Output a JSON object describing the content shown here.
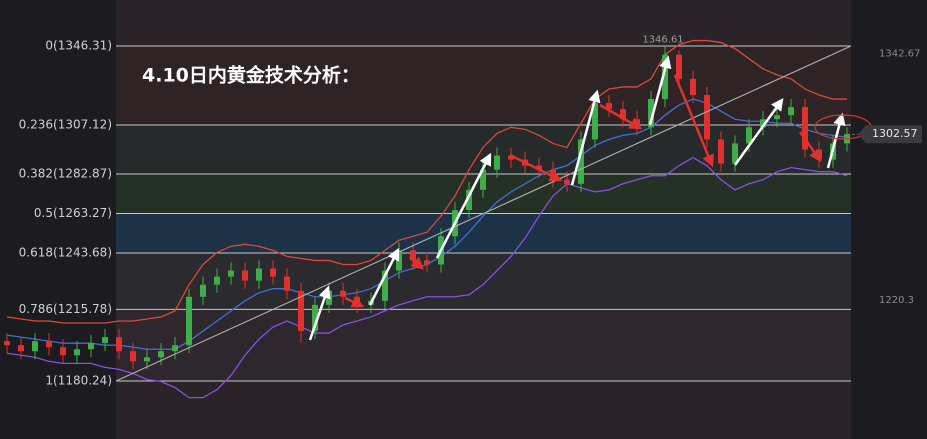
{
  "chart_data": {
    "type": "candlestick",
    "title": "4.10日内黄金技术分析：",
    "ylim": [
      1151.5,
      1369.1
    ],
    "yticks": [
      {
        "value": 1346.31,
        "label": "0(1346.31)"
      },
      {
        "value": 1307.12,
        "label": "0.236(1307.12)"
      },
      {
        "value": 1282.87,
        "label": "0.382(1282.87)"
      },
      {
        "value": 1263.27,
        "label": "0.5(1263.27)"
      },
      {
        "value": 1243.68,
        "label": "0.618(1243.68)"
      },
      {
        "value": 1215.78,
        "label": "0.786(1215.78)"
      },
      {
        "value": 1180.24,
        "label": "1(1180.24)"
      }
    ],
    "zone_colors": [
      "#2e2426",
      "#262a2b",
      "#253127",
      "#1d3246",
      "#2b2a2e",
      "#2e272d"
    ],
    "right_ticks": [
      1342.67,
      1220.3
    ],
    "up_color": "#3fae4a",
    "down_color": "#e0312f",
    "open": [
      1200,
      1198,
      1195,
      1200,
      1197,
      1193,
      1196,
      1199,
      1202,
      1195,
      1190,
      1192,
      1195,
      1198,
      1222,
      1228,
      1232,
      1235,
      1230,
      1236,
      1232,
      1225,
      1205,
      1218,
      1225,
      1222,
      1218,
      1220,
      1235,
      1245,
      1240,
      1238,
      1252,
      1265,
      1275,
      1285,
      1292,
      1290,
      1287,
      1285,
      1280,
      1278,
      1300,
      1318,
      1315,
      1310,
      1306,
      1320,
      1342,
      1330,
      1322,
      1300,
      1288,
      1298,
      1306,
      1310,
      1312,
      1316,
      1295,
      1290,
      1298
    ],
    "high": [
      1204,
      1202,
      1204,
      1204,
      1201,
      1200,
      1203,
      1206,
      1206,
      1199,
      1196,
      1199,
      1202,
      1226,
      1232,
      1236,
      1239,
      1239,
      1240,
      1240,
      1236,
      1229,
      1222,
      1229,
      1229,
      1226,
      1224,
      1239,
      1249,
      1249,
      1244,
      1256,
      1269,
      1279,
      1289,
      1296,
      1296,
      1294,
      1291,
      1289,
      1284,
      1304,
      1322,
      1322,
      1319,
      1314,
      1324,
      1346.61,
      1344,
      1334,
      1326,
      1304,
      1302,
      1310,
      1314,
      1316,
      1320,
      1320,
      1299,
      1302,
      1306
    ],
    "low": [
      1194,
      1191,
      1191,
      1193,
      1189,
      1189,
      1192,
      1195,
      1191,
      1186,
      1186,
      1188,
      1191,
      1194,
      1218,
      1224,
      1228,
      1226,
      1226,
      1228,
      1221,
      1199,
      1201,
      1214,
      1218,
      1214,
      1214,
      1216,
      1231,
      1236,
      1234,
      1234,
      1248,
      1261,
      1271,
      1281,
      1286,
      1283,
      1281,
      1276,
      1274,
      1274,
      1296,
      1311,
      1306,
      1302,
      1302,
      1316,
      1326,
      1318,
      1296,
      1284,
      1284,
      1294,
      1302,
      1306,
      1308,
      1291,
      1286,
      1286,
      1294
    ],
    "close": [
      1198,
      1195,
      1200,
      1197,
      1193,
      1196,
      1199,
      1202,
      1195,
      1190,
      1192,
      1195,
      1198,
      1222,
      1228,
      1232,
      1235,
      1230,
      1236,
      1232,
      1225,
      1205,
      1218,
      1225,
      1222,
      1218,
      1220,
      1235,
      1245,
      1240,
      1238,
      1252,
      1265,
      1275,
      1285,
      1292,
      1290,
      1287,
      1285,
      1280,
      1278,
      1300,
      1318,
      1315,
      1310,
      1306,
      1320,
      1342,
      1330,
      1322,
      1300,
      1288,
      1298,
      1306,
      1310,
      1312,
      1316,
      1295,
      1290,
      1298,
      1302.57
    ],
    "bands": {
      "upper": [
        1212,
        1211,
        1210,
        1210,
        1209,
        1209,
        1209,
        1209,
        1210,
        1210,
        1211,
        1212,
        1215,
        1228,
        1238,
        1244,
        1247,
        1248,
        1247,
        1245,
        1242,
        1241,
        1240,
        1240,
        1238,
        1238,
        1240,
        1245,
        1250,
        1252,
        1254,
        1262,
        1272,
        1285,
        1296,
        1303,
        1306,
        1305,
        1302,
        1298,
        1296,
        1308,
        1320,
        1325,
        1326,
        1326,
        1330,
        1342,
        1347,
        1349,
        1349,
        1348,
        1345,
        1340,
        1335,
        1332,
        1330,
        1325,
        1322,
        1320,
        1320
      ],
      "middle": [
        1203,
        1202,
        1201,
        1200,
        1199,
        1199,
        1199,
        1198,
        1198,
        1197,
        1196,
        1196,
        1196,
        1200,
        1205,
        1210,
        1215,
        1220,
        1224,
        1226,
        1226,
        1224,
        1222,
        1222,
        1223,
        1224,
        1226,
        1230,
        1234,
        1236,
        1238,
        1242,
        1247,
        1254,
        1262,
        1269,
        1274,
        1278,
        1282,
        1285,
        1287,
        1292,
        1297,
        1300,
        1302,
        1303,
        1306,
        1312,
        1317,
        1320,
        1318,
        1314,
        1310,
        1309,
        1309,
        1308,
        1308,
        1305,
        1303,
        1302,
        1301
      ],
      "lower": [
        1194,
        1193,
        1192,
        1190,
        1189,
        1189,
        1189,
        1187,
        1186,
        1184,
        1181,
        1180,
        1177,
        1172,
        1172,
        1176,
        1183,
        1193,
        1201,
        1207,
        1210,
        1207,
        1204,
        1204,
        1208,
        1210,
        1212,
        1215,
        1218,
        1220,
        1222,
        1222,
        1222,
        1223,
        1228,
        1235,
        1242,
        1251,
        1262,
        1272,
        1278,
        1276,
        1274,
        1275,
        1278,
        1280,
        1282,
        1282,
        1287,
        1291,
        1287,
        1280,
        1275,
        1278,
        1280,
        1284,
        1286,
        1285,
        1284,
        1284,
        1282
      ]
    },
    "band_colors": {
      "upper": "#d9493a",
      "middle": "#3f6fd6",
      "lower": "#8a4fe0"
    }
  }
}
